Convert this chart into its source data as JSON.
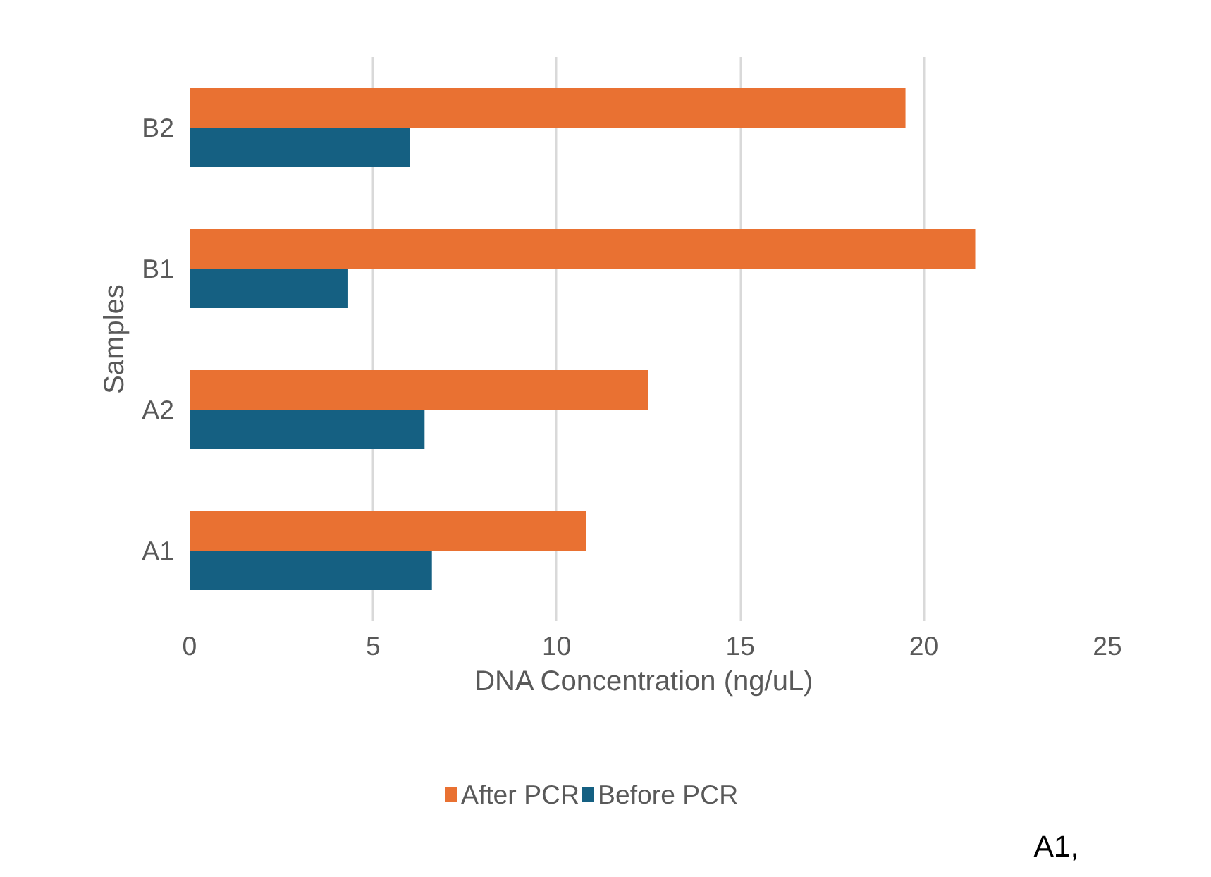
{
  "chart_data": {
    "type": "bar",
    "orientation": "horizontal",
    "categories": [
      "B2",
      "B1",
      "A2",
      "A1"
    ],
    "series": [
      {
        "name": "After PCR",
        "color": "#e97132",
        "values": [
          19.5,
          21.4,
          12.5,
          10.8
        ]
      },
      {
        "name": "Before PCR",
        "color": "#156082",
        "values": [
          6.0,
          4.3,
          6.4,
          6.6
        ]
      }
    ],
    "xlabel": "DNA Concentration  (ng/uL)",
    "ylabel": "Samples",
    "xlim": [
      0,
      25
    ],
    "xticks": [
      0,
      5,
      10,
      15,
      20,
      25
    ],
    "grid": "x",
    "legend": "bottom",
    "annotations": [
      "A1,"
    ]
  }
}
